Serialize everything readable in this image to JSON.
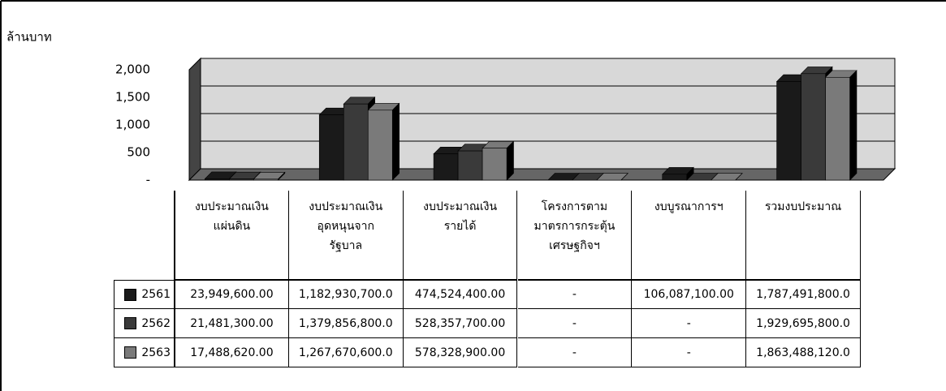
{
  "chart_data": {
    "type": "bar",
    "y_label": "ล้านบาท",
    "categories": [
      "งบประมาณเงิน\nแผ่นดิน",
      "งบประมาณเงิน\nอุดหนุนจาก\nรัฐบาล",
      "งบประมาณเงิน\nรายได้",
      "โครงการตาม\nมาตรการกระตุ้น\nเศรษฐกิจฯ",
      "งบบูรณาการฯ",
      "รวมงบประมาณ"
    ],
    "series": [
      {
        "name": "2561",
        "color": "#1a1a1a",
        "values": [
          23.9496,
          1182.9307,
          474.5244,
          0,
          106.0871,
          1787.4918
        ],
        "value_labels": [
          "23,949,600.00",
          "1,182,930,700.0",
          "474,524,400.00",
          "-",
          "106,087,100.00",
          "1,787,491,800.0"
        ]
      },
      {
        "name": "2562",
        "color": "#3a3a3a",
        "values": [
          21.4813,
          1379.8568,
          528.3577,
          0,
          0,
          1929.6958
        ],
        "value_labels": [
          "21,481,300.00",
          "1,379,856,800.0",
          "528,357,700.00",
          "-",
          "-",
          "1,929,695,800.0"
        ]
      },
      {
        "name": "2563",
        "color": "#7a7a7a",
        "values": [
          17.48862,
          1267.6706,
          578.3289,
          0,
          0,
          1863.48812
        ],
        "value_labels": [
          "17,488,620.00",
          "1,267,670,600.0",
          "578,328,900.00",
          "-",
          "-",
          "1,863,488,120.0"
        ]
      }
    ],
    "ylim": [
      0,
      2000
    ],
    "yticks": [
      {
        "value": 0,
        "label": "-"
      },
      500,
      {
        "value": 1000,
        "label": "1,000"
      },
      {
        "value": 1500,
        "label": "1,500"
      },
      {
        "value": 2000,
        "label": "2,000"
      }
    ],
    "grid": true
  }
}
